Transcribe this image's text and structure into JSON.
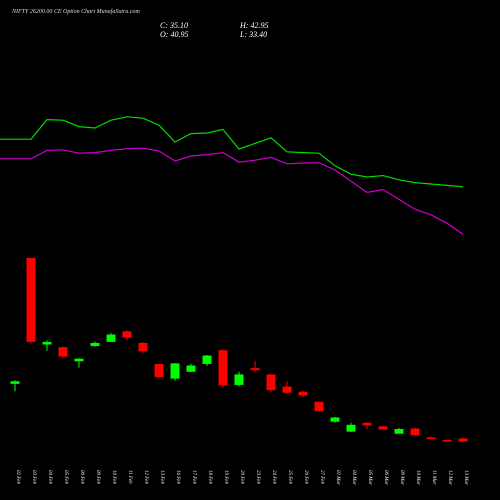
{
  "header": {
    "title": "NIFTY 26200.00 CE Option Chart MunafaSutra.com",
    "close": "C: 35.10",
    "open": "O: 40.95",
    "high": "H: 42.95",
    "low": "L: 33.40"
  },
  "colors": {
    "background": "#000000",
    "up": "#00ff00",
    "down": "#ff0000",
    "line_green": "#00dd00",
    "line_magenta": "#cc00cc",
    "text": "#ffffff"
  },
  "chart_data": {
    "type": "candlestick",
    "grid": false,
    "x": [
      "02 Feb",
      "03 Feb",
      "04 Feb",
      "05 Feb",
      "06 Feb",
      "09 Feb",
      "10 Feb",
      "11 Feb",
      "12 Feb",
      "13 Feb",
      "16 Feb",
      "17 Feb",
      "18 Feb",
      "19 Feb",
      "20 Feb",
      "23 Feb",
      "24 Feb",
      "25 Feb",
      "26 Feb",
      "27 Feb",
      "02 Mar",
      "04 Mar",
      "05 Mar",
      "06 Mar",
      "09 Mar",
      "10 Mar",
      "11 Mar",
      "12 Mar",
      "13 Mar"
    ],
    "candles": [
      {
        "open": 145,
        "high": 152,
        "low": 131,
        "close": 150,
        "color": "green"
      },
      {
        "open": 385,
        "high": 385,
        "low": 222,
        "close": 225,
        "color": "red"
      },
      {
        "open": 220,
        "high": 228,
        "low": 208,
        "close": 225,
        "color": "green"
      },
      {
        "open": 215,
        "high": 216,
        "low": 194,
        "close": 197,
        "color": "red"
      },
      {
        "open": 188,
        "high": 194,
        "low": 176,
        "close": 193,
        "color": "green"
      },
      {
        "open": 217,
        "high": 226,
        "low": 216,
        "close": 223,
        "color": "green"
      },
      {
        "open": 225,
        "high": 242,
        "low": 225,
        "close": 239,
        "color": "green"
      },
      {
        "open": 245,
        "high": 247,
        "low": 228,
        "close": 233,
        "color": "red"
      },
      {
        "open": 223,
        "high": 225,
        "low": 203,
        "close": 207,
        "color": "red"
      },
      {
        "open": 183,
        "high": 183,
        "low": 157,
        "close": 158,
        "color": "red"
      },
      {
        "open": 155,
        "high": 185,
        "low": 151,
        "close": 184,
        "color": "green"
      },
      {
        "open": 168,
        "high": 183,
        "low": 168,
        "close": 180,
        "color": "green"
      },
      {
        "open": 183,
        "high": 200,
        "low": 179,
        "close": 199,
        "color": "green"
      },
      {
        "open": 209,
        "high": 211,
        "low": 138,
        "close": 142,
        "color": "red"
      },
      {
        "open": 143,
        "high": 168,
        "low": 140,
        "close": 163,
        "color": "green"
      },
      {
        "open": 175,
        "high": 189,
        "low": 167,
        "close": 171,
        "color": "red"
      },
      {
        "open": 163,
        "high": 163,
        "low": 129,
        "close": 133,
        "color": "red"
      },
      {
        "open": 140,
        "high": 150,
        "low": 126,
        "close": 128,
        "color": "red"
      },
      {
        "open": 130,
        "high": 132,
        "low": 120,
        "close": 123,
        "color": "red"
      },
      {
        "open": 111,
        "high": 111,
        "low": 92,
        "close": 93,
        "color": "red"
      },
      {
        "open": 73,
        "high": 82,
        "low": 71,
        "close": 81,
        "color": "green"
      },
      {
        "open": 54,
        "high": 71,
        "low": 53,
        "close": 67,
        "color": "green"
      },
      {
        "open": 71,
        "high": 72,
        "low": 59,
        "close": 66,
        "color": "red"
      },
      {
        "open": 64,
        "high": 65,
        "low": 58,
        "close": 58,
        "color": "red"
      },
      {
        "open": 50,
        "high": 61,
        "low": 50,
        "close": 59,
        "color": "green"
      },
      {
        "open": 60,
        "high": 61,
        "low": 46,
        "close": 47,
        "color": "red"
      },
      {
        "open": 43,
        "high": 45,
        "low": 39,
        "close": 40,
        "color": "red"
      },
      {
        "open": 38,
        "high": 39,
        "low": 35,
        "close": 36,
        "color": "red"
      },
      {
        "open": 40.95,
        "high": 42.95,
        "low": 33.4,
        "close": 35.1,
        "color": "red"
      }
    ],
    "lines": [
      {
        "color": "green",
        "values": [
          460,
          460,
          530,
          528,
          505,
          500,
          528,
          540,
          535,
          510,
          450,
          480,
          482,
          495,
          425,
          445,
          465,
          415,
          412,
          410,
          365,
          335,
          325,
          330,
          315,
          305,
          300,
          295,
          290
        ]
      },
      {
        "color": "magenta",
        "values": [
          390,
          390,
          420,
          422,
          410,
          412,
          420,
          426,
          428,
          418,
          382,
          400,
          405,
          412,
          378,
          385,
          395,
          372,
          375,
          376,
          350,
          310,
          270,
          280,
          245,
          210,
          190,
          160,
          120
        ]
      }
    ]
  }
}
